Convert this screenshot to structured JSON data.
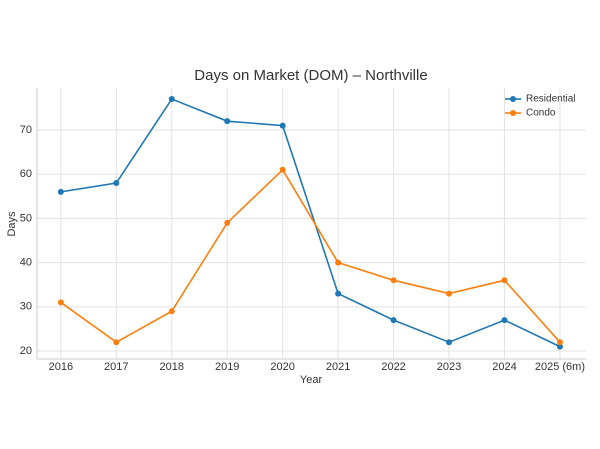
{
  "chart_data": {
    "type": "line",
    "title": "Days on Market (DOM) – Northville",
    "x_label": "Year",
    "y_label": "Days",
    "categories": [
      "2016",
      "2017",
      "2018",
      "2019",
      "2020",
      "2021",
      "2022",
      "2023",
      "2024",
      "2025 (6m)"
    ],
    "series": [
      {
        "name": "Residential",
        "color": "#1f77b4",
        "values": [
          56,
          58,
          77,
          72,
          71,
          33,
          27,
          22,
          27,
          21
        ]
      },
      {
        "name": "Condo",
        "color": "#ff7f0e",
        "values": [
          31,
          22,
          29,
          49,
          61,
          40,
          36,
          33,
          36,
          22
        ]
      }
    ],
    "ylim": [
      18.2,
      79.5
    ],
    "yticks": [
      20,
      30,
      40,
      50,
      60,
      70
    ],
    "grid": true,
    "legend": "upper right"
  }
}
